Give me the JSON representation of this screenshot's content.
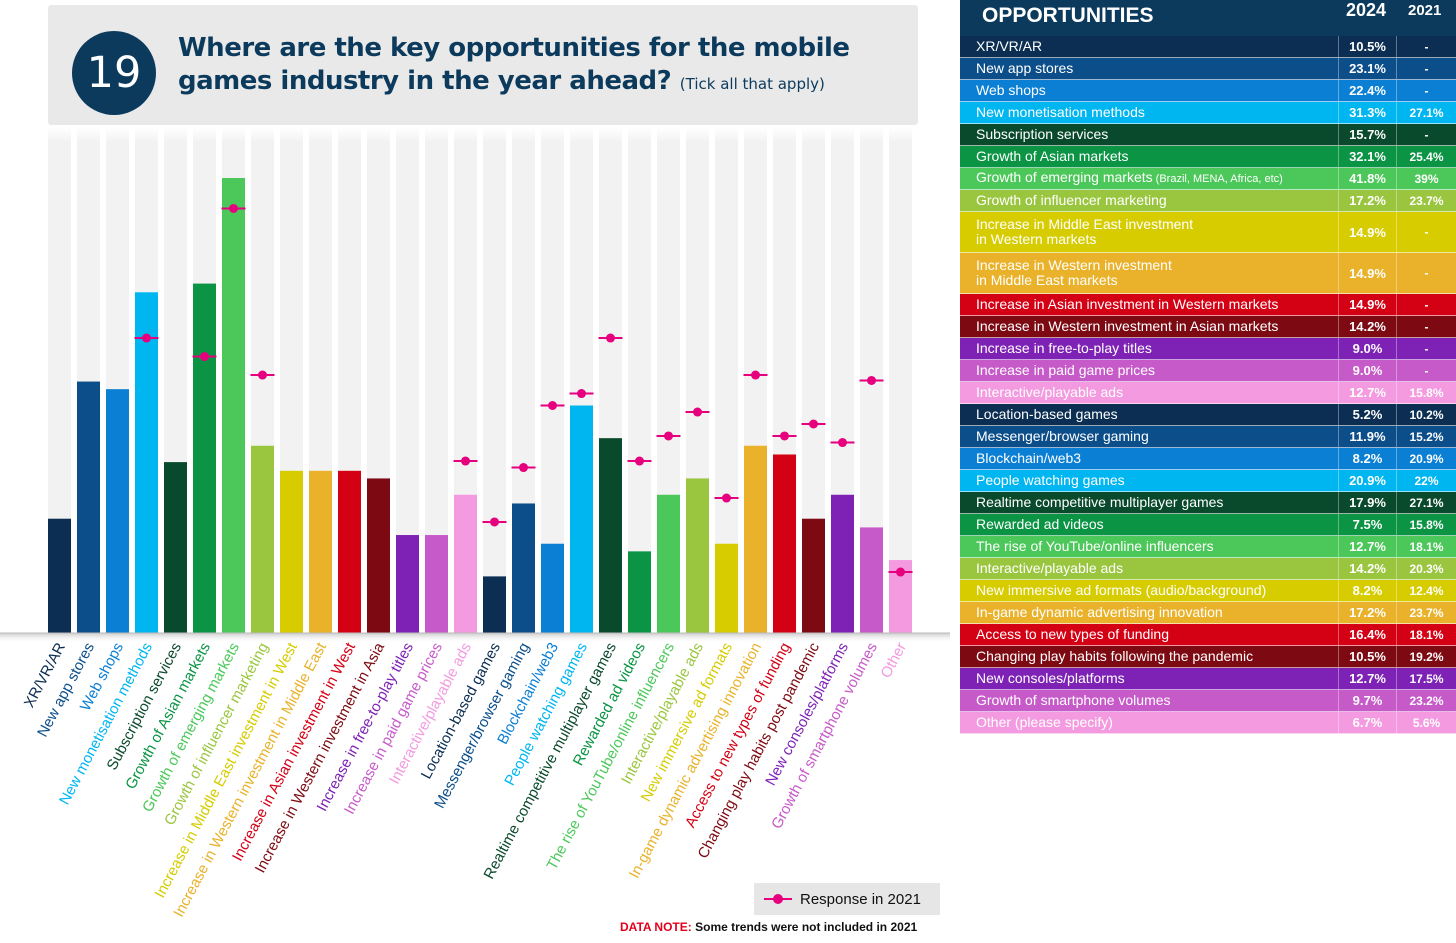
{
  "question": {
    "number": "19",
    "title_line1": "Where are the key opportunities for the mobile",
    "title_line2": "games industry in the year ahead?",
    "instruction": "(Tick all that apply)"
  },
  "legend": {
    "label": "Response in 2021"
  },
  "data_note": {
    "prefix": "DATA NOTE:",
    "text": "Some trends were not included in 2021"
  },
  "table": {
    "title": "OPPORTUNITIES",
    "col_2024": "2024",
    "col_2021": "2021",
    "rows": [
      {
        "label": "XR/VR/AR",
        "v2024": "10.5%",
        "v2021": "-",
        "color": "#0b2e52"
      },
      {
        "label": "New app stores",
        "v2024": "23.1%",
        "v2021": "-",
        "color": "#0c4e8a"
      },
      {
        "label": "Web shops",
        "v2024": "22.4%",
        "v2021": "-",
        "color": "#0a7fd4"
      },
      {
        "label": "New monetisation methods",
        "v2024": "31.3%",
        "v2021": "27.1%",
        "color": "#00b6f0"
      },
      {
        "label": "Subscription services",
        "v2024": "15.7%",
        "v2021": "-",
        "color": "#0a4a2c"
      },
      {
        "label": "Growth of Asian markets",
        "v2024": "32.1%",
        "v2021": "25.4%",
        "color": "#0a9444"
      },
      {
        "label": "Growth of emerging markets",
        "label_small": "(Brazil, MENA, Africa, etc)",
        "v2024": "41.8%",
        "v2021": "39%",
        "color": "#4cc85a"
      },
      {
        "label": "Growth of influencer marketing",
        "v2024": "17.2%",
        "v2021": "23.7%",
        "color": "#9ac63f"
      },
      {
        "label": "Increase in Middle East investment",
        "label_line2": "in Western markets",
        "v2024": "14.9%",
        "v2021": "-",
        "color": "#d6cc00"
      },
      {
        "label": "Increase in Western investment",
        "label_line2": "in Middle East markets",
        "v2024": "14.9%",
        "v2021": "-",
        "color": "#e9b22a"
      },
      {
        "label": "Increase in Asian investment in Western markets",
        "v2024": "14.9%",
        "v2021": "-",
        "color": "#d40014"
      },
      {
        "label": "Increase in Western investment in Asian markets",
        "v2024": "14.2%",
        "v2021": "-",
        "color": "#7d0a12"
      },
      {
        "label": "Increase in free-to-play titles",
        "v2024": "9.0%",
        "v2021": "-",
        "color": "#7e22b5"
      },
      {
        "label": "Increase in paid game prices",
        "v2024": "9.0%",
        "v2021": "-",
        "color": "#c75ac9"
      },
      {
        "label": "Interactive/playable ads",
        "v2024": "12.7%",
        "v2021": "15.8%",
        "color": "#f39ae0"
      },
      {
        "label": "Location-based games",
        "v2024": "5.2%",
        "v2021": "10.2%",
        "color": "#0b2e52"
      },
      {
        "label": "Messenger/browser gaming",
        "v2024": "11.9%",
        "v2021": "15.2%",
        "color": "#0c4e8a"
      },
      {
        "label": "Blockchain/web3",
        "v2024": "8.2%",
        "v2021": "20.9%",
        "color": "#0a7fd4"
      },
      {
        "label": "People watching games",
        "v2024": "20.9%",
        "v2021": "22%",
        "color": "#00b6f0"
      },
      {
        "label": "Realtime competitive multiplayer games",
        "v2024": "17.9%",
        "v2021": "27.1%",
        "color": "#0a4a2c"
      },
      {
        "label": "Rewarded ad videos",
        "v2024": "7.5%",
        "v2021": "15.8%",
        "color": "#0a9444"
      },
      {
        "label": "The rise of YouTube/online influencers",
        "v2024": "12.7%",
        "v2021": "18.1%",
        "color": "#4cc85a"
      },
      {
        "label": "Interactive/playable ads",
        "v2024": "14.2%",
        "v2021": "20.3%",
        "color": "#9ac63f"
      },
      {
        "label": "New immersive ad formats (audio/background)",
        "v2024": "8.2%",
        "v2021": "12.4%",
        "color": "#d6cc00"
      },
      {
        "label": "In-game dynamic advertising innovation",
        "v2024": "17.2%",
        "v2021": "23.7%",
        "color": "#e9b22a"
      },
      {
        "label": "Access to new types of funding",
        "v2024": "16.4%",
        "v2021": "18.1%",
        "color": "#d40014"
      },
      {
        "label": "Changing play habits following the pandemic",
        "v2024": "10.5%",
        "v2021": "19.2%",
        "color": "#7d0a12"
      },
      {
        "label": "New consoles/platforms",
        "v2024": "12.7%",
        "v2021": "17.5%",
        "color": "#7e22b5"
      },
      {
        "label": "Growth of smartphone volumes",
        "v2024": "9.7%",
        "v2021": "23.2%",
        "color": "#c75ac9"
      },
      {
        "label": "Other (please specify)",
        "v2024": "6.7%",
        "v2021": "5.6%",
        "color": "#f39ae0"
      }
    ]
  },
  "chart_data": {
    "type": "bar",
    "categories": [
      "XR/VR/AR",
      "New app stores",
      "Web shops",
      "New monetisation methods",
      "Subscription services",
      "Growth of Asian markets",
      "Growth of emerging markets",
      "Growth of influencer marketing",
      "Increase in Middle East investment in West",
      "Increase in Western investment in Middle East",
      "Increase in Asian investment in West",
      "Increase in Western investment in Asia",
      "Increase in free-to-play titles",
      "Increase in paid game prices",
      "Interactive/playable ads",
      "Location-based games",
      "Messenger/browser gaming",
      "Blockchain/web3",
      "People watching games",
      "Realtime competitive multiplayer games",
      "Rewarded ad videos",
      "The rise of YouTube/online influencers",
      "Interactive/playable ads",
      "New immersive ad formats",
      "In-game dynamic advertising innovation",
      "Access to new types of funding",
      "Changing play habits post pandemic",
      "New consoles/platforms",
      "Growth of smartphone volumes",
      "Other"
    ],
    "series": [
      {
        "type": "bar",
        "values": [
          10.5,
          23.1,
          22.4,
          31.3,
          15.7,
          32.1,
          41.8,
          17.2,
          14.9,
          14.9,
          14.9,
          14.2,
          9.0,
          9.0,
          12.7,
          5.2,
          11.9,
          8.2,
          20.9,
          17.9,
          7.5,
          12.7,
          14.2,
          8.2,
          17.2,
          16.4,
          10.5,
          12.7,
          9.7,
          6.7
        ]
      },
      {
        "name": "Response in 2021",
        "type": "marker",
        "values": [
          null,
          null,
          null,
          27.1,
          null,
          25.4,
          39,
          23.7,
          null,
          null,
          null,
          null,
          null,
          null,
          15.8,
          10.2,
          15.2,
          20.9,
          22,
          27.1,
          15.8,
          18.1,
          20.3,
          12.4,
          23.7,
          18.1,
          19.2,
          17.5,
          23.2,
          5.6
        ]
      }
    ],
    "bar_colors": [
      "#0b2e52",
      "#0c4e8a",
      "#0a7fd4",
      "#00b6f0",
      "#0a4a2c",
      "#0a9444",
      "#4cc85a",
      "#9ac63f",
      "#d6cc00",
      "#e9b22a",
      "#d40014",
      "#7d0a12",
      "#7e22b5",
      "#c75ac9",
      "#f39ae0",
      "#0b2e52",
      "#0c4e8a",
      "#0a7fd4",
      "#00b6f0",
      "#0a4a2c",
      "#0a9444",
      "#4cc85a",
      "#9ac63f",
      "#d6cc00",
      "#e9b22a",
      "#d40014",
      "#7d0a12",
      "#7e22b5",
      "#c75ac9",
      "#f39ae0"
    ],
    "marker_color": "#e6007e",
    "ylim": [
      0,
      45
    ],
    "grid": false
  }
}
